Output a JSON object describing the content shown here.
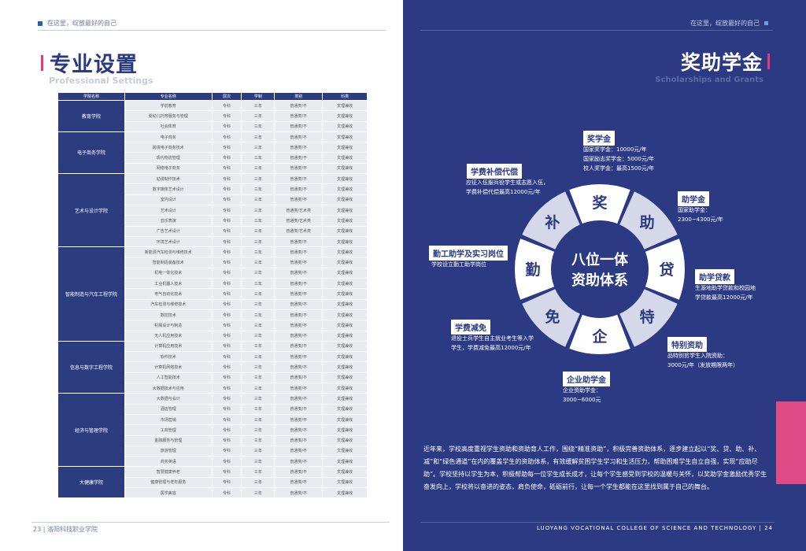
{
  "left_page": {
    "header": "在这里，绽放最好的自己",
    "title": "专业设置",
    "subtitle": "Professional Settings",
    "table": {
      "headers": [
        "学院名称",
        "专业名称",
        "层次",
        "学制",
        "类别",
        "科类"
      ],
      "groups": [
        {
          "college": "教育学院",
          "rows": [
            [
              "学前教育",
              "专科",
              "三年",
              "普通类/不",
              "文理兼收"
            ],
            [
              "婴幼儿托育服务与管理",
              "专科",
              "三年",
              "普通类/不",
              "文理兼收"
            ],
            [
              "社会体育",
              "专科",
              "三年",
              "普通类/不",
              "文理兼收"
            ]
          ]
        },
        {
          "college": "电子商务学院",
          "rows": [
            [
              "电子商务",
              "专科",
              "三年",
              "普通类/不",
              "文理兼收"
            ],
            [
              "跨境电子商务技术",
              "专科",
              "三年",
              "普通类/不",
              "文理兼收"
            ],
            [
              "现代物流管理",
              "专科",
              "三年",
              "普通类/不",
              "文理兼收"
            ],
            [
              "网络电子商务",
              "专科",
              "三年",
              "普通类/不",
              "文理兼收"
            ]
          ]
        },
        {
          "college": "艺术与设计学院",
          "rows": [
            [
              "动漫制作技术",
              "专科",
              "三年",
              "普通类/不",
              "文理兼收"
            ],
            [
              "数字媒体艺术设计",
              "专科",
              "三年",
              "普通类/不",
              "文理兼收"
            ],
            [
              "室内设计",
              "专科",
              "三年",
              "普通类/不",
              "文理兼收"
            ],
            [
              "艺术设计",
              "专科",
              "三年",
              "普通类/艺术类",
              "文理兼收"
            ],
            [
              "音乐表演",
              "专科",
              "三年",
              "普通类/艺术类",
              "文理兼收"
            ],
            [
              "广告艺术设计",
              "专科",
              "三年",
              "普通类/艺术类",
              "文理兼收"
            ],
            [
              "环境艺术设计",
              "专科",
              "三年",
              "普通类/不",
              "文理兼收"
            ]
          ]
        },
        {
          "college": "智能制造与汽车工程学院",
          "rows": [
            [
              "新能源汽车检测与维修技术",
              "专科",
              "三年",
              "普通类/不",
              "文理兼收"
            ],
            [
              "智能制造装备技术",
              "专科",
              "三年",
              "普通类/不",
              "文理兼收"
            ],
            [
              "机电一体化技术",
              "专科",
              "三年",
              "普通类/不",
              "文理兼收"
            ],
            [
              "工业机器人技术",
              "专科",
              "三年",
              "普通类/不",
              "文理兼收"
            ],
            [
              "电气自动化技术",
              "专科",
              "三年",
              "普通类/不",
              "文理兼收"
            ],
            [
              "汽车检测与维修技术",
              "专科",
              "三年",
              "普通类/不",
              "文理兼收"
            ],
            [
              "数控技术",
              "专科",
              "三年",
              "普通类/不",
              "文理兼收"
            ],
            [
              "机械设计与制造",
              "专科",
              "三年",
              "普通类/不",
              "文理兼收"
            ],
            [
              "无人机应用技术",
              "专科",
              "三年",
              "普通类/不",
              "文理兼收"
            ]
          ]
        },
        {
          "college": "信息与数字工程学院",
          "rows": [
            [
              "计算机应用技术",
              "专科",
              "三年",
              "普通类/不",
              "文理兼收"
            ],
            [
              "软件技术",
              "专科",
              "三年",
              "普通类/不",
              "文理兼收"
            ],
            [
              "计算机网络技术",
              "专科",
              "三年",
              "普通类/不",
              "文理兼收"
            ],
            [
              "人工智能技术",
              "专科",
              "三年",
              "普通类/不",
              "文理兼收"
            ],
            [
              "大数据技术与应用",
              "专科",
              "三年",
              "普通类/不",
              "文理兼收"
            ]
          ]
        },
        {
          "college": "经济与管理学院",
          "rows": [
            [
              "大数据与会计",
              "专科",
              "三年",
              "普通类/不",
              "文理兼收"
            ],
            [
              "酒店管理",
              "专科",
              "三年",
              "普通类/不",
              "文理兼收"
            ],
            [
              "市场营销",
              "专科",
              "三年",
              "普通类/不",
              "文理兼收"
            ],
            [
              "工商管理",
              "专科",
              "三年",
              "普通类/不",
              "文理兼收"
            ],
            [
              "金融服务与管理",
              "专科",
              "三年",
              "普通类/不",
              "文理兼收"
            ],
            [
              "旅游管理",
              "专科",
              "三年",
              "普通类/不",
              "文理兼收"
            ],
            [
              "商务英语",
              "专科",
              "三年",
              "普通类/不",
              "文理兼收"
            ]
          ]
        },
        {
          "college": "大健康学院",
          "rows": [
            [
              "智慧健康养老",
              "专科",
              "三年",
              "普通类/不",
              "文理兼收"
            ],
            [
              "健康管理与老年服务",
              "专科",
              "三年",
              "普通类/不",
              "文理兼收"
            ],
            [
              "医学美容",
              "专科",
              "三年",
              "普通类/不",
              "文理兼收"
            ]
          ]
        }
      ]
    },
    "footer": "23 | 洛阳科技职业学院"
  },
  "right_page": {
    "header": "在这里，绽放最好的自己",
    "title": "奖助学金",
    "subtitle": "Scholarships and Grants",
    "center_line1": "八位一体",
    "center_line2": "资助体系",
    "ring_chars": [
      "奖",
      "助",
      "贷",
      "特",
      "企",
      "免",
      "勤",
      "补"
    ],
    "items": [
      {
        "label": "奖学金",
        "desc": [
          "国家奖学金：10000元/年",
          "国家励志奖学金：5000元/年",
          "校人奖学金：最高1500元/年"
        ]
      },
      {
        "label": "助学金",
        "desc": [
          "国家助学金：",
          "2300~4300元/年"
        ]
      },
      {
        "label": "助学贷款",
        "desc": [
          "生源地助学贷款和校园地",
          "学贷款最高12000元/年"
        ]
      },
      {
        "label": "特别资助",
        "desc": [
          "品特别贫学生入院资助：",
          "3000元/年（发放期限两年）"
        ]
      },
      {
        "label": "企业助学金",
        "desc": [
          "企业资助学金：",
          "3000~6000元"
        ]
      },
      {
        "label": "学费减免",
        "desc": [
          "退役士兵学生自主就业考生等入学",
          "学生，学费减免最高12000元/年"
        ]
      },
      {
        "label": "勤工助学及实习岗位",
        "desc": [
          "学校设立勤工助学岗位"
        ]
      },
      {
        "label": "学费补偿代偿",
        "desc": [
          "应征入伍服兵役学生或志愿入伍，",
          "学费补偿代偿最高12000元/年"
        ]
      }
    ],
    "paragraph": "近年来，学校高度重视学生资助和资助育人工作，围绕“精准资助”，积极完善资助体系，逐步建立起以“奖、贷、助、补、减”和“绿色通道”在内的覆盖学生的资助体系，有效缓解贫困学生学习和生活压力，帮助困难学生自立自强，实现“应助尽助”。学校坚持以学生为本，积极帮助每一位学生成长成才，让每个学生感受到学校的温暖与关怀，以奖助学金激励优秀学生奋发向上，学校将以奋进的姿态，肩负使命，砥砺前行，让每一个学生都能在这里找到属于自己的舞台。",
    "footer": "LUOYANG VOCATIONAL COLLEGE OF SCIENCE AND TECHNOLOGY | 24"
  },
  "colors": {
    "navy": "#2b3a82",
    "pink": "#e04b86",
    "ring_light": "#d4d8e8"
  }
}
